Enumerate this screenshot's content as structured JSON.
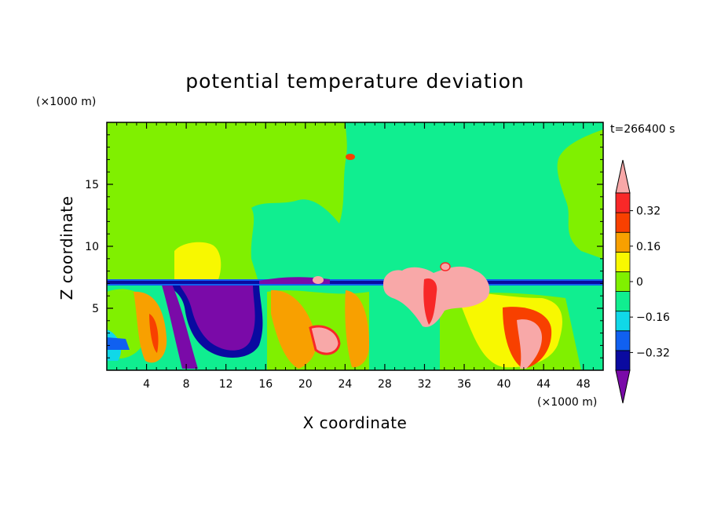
{
  "chart_data": {
    "type": "heatmap",
    "title": "potential temperature deviation",
    "xlabel": "X coordinate",
    "ylabel": "Z coordinate",
    "x_unit": "(×1000 m)",
    "y_unit": "(×1000 m)",
    "time_label": "t=266400 s",
    "x_range": [
      0,
      50
    ],
    "y_range": [
      0,
      20
    ],
    "x_ticks": [
      4,
      8,
      12,
      16,
      20,
      24,
      28,
      32,
      36,
      40,
      44,
      48
    ],
    "y_ticks": [
      5,
      10,
      15
    ],
    "colorbar": {
      "levels": [
        -0.4,
        -0.32,
        -0.24,
        -0.16,
        -0.08,
        0,
        0.08,
        0.16,
        0.24,
        0.32,
        0.4
      ],
      "labels": [
        "0.32",
        "0.16",
        "0",
        "−0.16",
        "−0.32"
      ],
      "label_values": [
        0.32,
        0.16,
        0,
        -0.16,
        -0.32
      ],
      "colors": [
        "#7a0aa8",
        "#0a0aa0",
        "#1060f0",
        "#10d8e8",
        "#10ee90",
        "#80f000",
        "#f8f800",
        "#f8a000",
        "#f84000",
        "#f82828",
        "#f8a8a8"
      ],
      "extend": "both"
    }
  }
}
